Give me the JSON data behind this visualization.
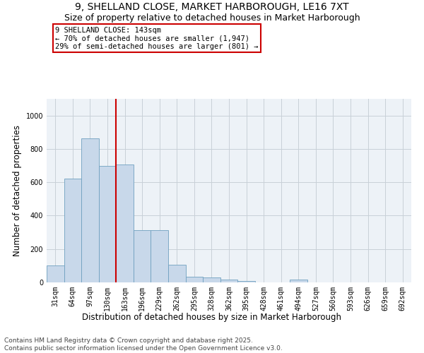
{
  "title": "9, SHELLAND CLOSE, MARKET HARBOROUGH, LE16 7XT",
  "subtitle": "Size of property relative to detached houses in Market Harborough",
  "xlabel": "Distribution of detached houses by size in Market Harborough",
  "ylabel": "Number of detached properties",
  "categories": [
    "31sqm",
    "64sqm",
    "97sqm",
    "130sqm",
    "163sqm",
    "196sqm",
    "229sqm",
    "262sqm",
    "295sqm",
    "328sqm",
    "362sqm",
    "395sqm",
    "428sqm",
    "461sqm",
    "494sqm",
    "527sqm",
    "560sqm",
    "593sqm",
    "626sqm",
    "659sqm",
    "692sqm"
  ],
  "values": [
    100,
    620,
    865,
    700,
    705,
    315,
    315,
    105,
    35,
    30,
    18,
    10,
    0,
    0,
    18,
    0,
    0,
    0,
    0,
    0,
    0
  ],
  "bar_color": "#c8d8ea",
  "bar_edge_color": "#6fa0c0",
  "vline_color": "#cc0000",
  "annotation_text": "9 SHELLAND CLOSE: 143sqm\n← 70% of detached houses are smaller (1,947)\n29% of semi-detached houses are larger (801) →",
  "annotation_box_color": "#cc0000",
  "ylim": [
    0,
    1100
  ],
  "yticks": [
    0,
    200,
    400,
    600,
    800,
    1000
  ],
  "grid_color": "#c8d0d8",
  "background_color": "#edf2f7",
  "footer": "Contains HM Land Registry data © Crown copyright and database right 2025.\nContains public sector information licensed under the Open Government Licence v3.0.",
  "title_fontsize": 10,
  "subtitle_fontsize": 9,
  "xlabel_fontsize": 8.5,
  "ylabel_fontsize": 8.5,
  "tick_fontsize": 7,
  "footer_fontsize": 6.5,
  "annotation_fontsize": 7.5
}
